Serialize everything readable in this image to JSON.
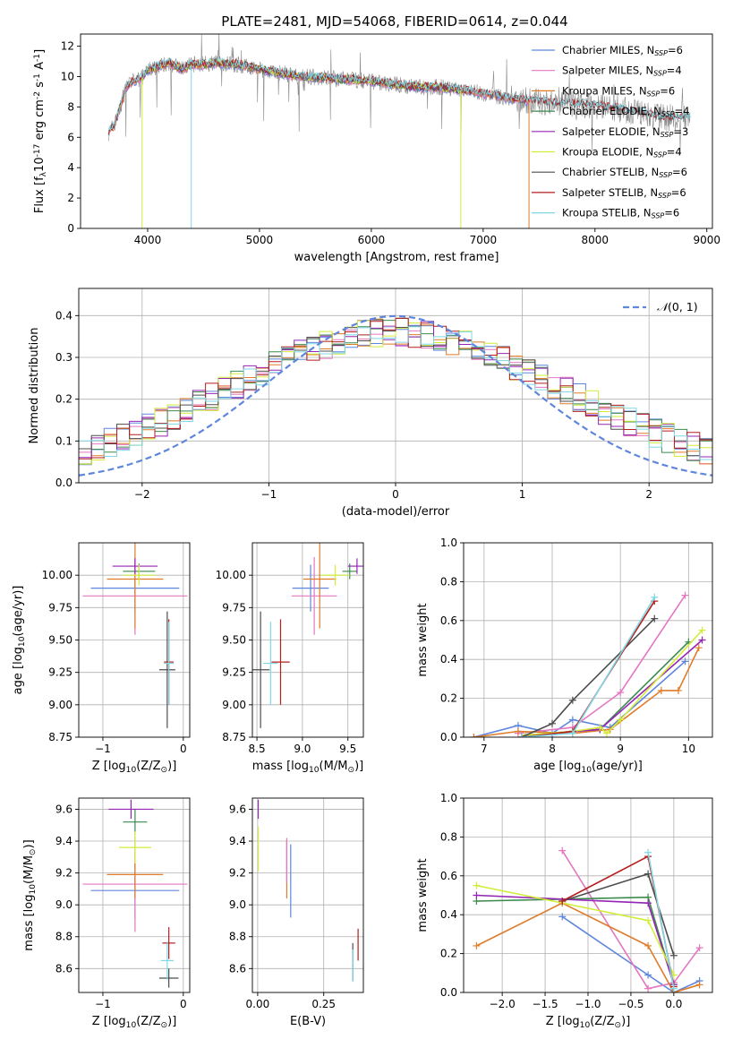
{
  "figure_title": "PLATE=2481, MJD=54068, FIBERID=0614, z=0.044",
  "colors": {
    "Chabrier MILES": "#5f86dd",
    "Salpeter MILES": "#e377c2",
    "Kroupa MILES": "#e07b28",
    "Chabrier ELODIE": "#3c8a4e",
    "Salpeter ELODIE": "#9525b5",
    "Kroupa ELODIE": "#d2ec3a",
    "Chabrier STELIB": "#4d4d4d",
    "Salpeter STELIB": "#b51e1e",
    "Kroupa STELIB": "#7fd8e6",
    "data": "#8c8c8c",
    "normal": "#5f86dd"
  },
  "chart_data": [
    {
      "id": "spectrum",
      "type": "line",
      "title": "PLATE=2481, MJD=54068, FIBERID=0614, z=0.044",
      "xlabel": "wavelength [Angstrom, rest frame]",
      "ylabel": "Flux [f$_\\lambda$10$^{-17}$ erg cm$^{-2}$ s$^{-1}$ A$^{-1}$]",
      "xlim": [
        3400,
        9050
      ],
      "ylim": [
        0,
        12.8
      ],
      "xticks": [
        4000,
        5000,
        6000,
        7000,
        8000,
        9000
      ],
      "yticks": [
        0,
        2,
        4,
        6,
        8,
        10,
        12
      ],
      "grid": false,
      "legend_position": "upper-right",
      "legend": [
        {
          "base": "Chabrier MILES, N",
          "sub": "SSP",
          "tail": "=6"
        },
        {
          "base": "Salpeter MILES, N",
          "sub": "SSP",
          "tail": "=4"
        },
        {
          "base": "Kroupa MILES, N",
          "sub": "SSP",
          "tail": "=6"
        },
        {
          "base": "Chabrier ELODIE, N",
          "sub": "SSP",
          "tail": "=4"
        },
        {
          "base": "Salpeter ELODIE, N",
          "sub": "SSP",
          "tail": "=3"
        },
        {
          "base": "Kroupa ELODIE, N",
          "sub": "SSP",
          "tail": "=4"
        },
        {
          "base": "Chabrier STELIB, N",
          "sub": "SSP",
          "tail": "=6"
        },
        {
          "base": "Salpeter STELIB, N",
          "sub": "SSP",
          "tail": "=6"
        },
        {
          "base": "Kroupa STELIB, N",
          "sub": "SSP",
          "tail": "=6"
        }
      ],
      "continuum": {
        "x": [
          3650,
          3700,
          3750,
          3800,
          3850,
          3900,
          3950,
          4000,
          4100,
          4200,
          4300,
          4400,
          4500,
          4600,
          4800,
          5000,
          5200,
          5400,
          5600,
          5800,
          6000,
          6200,
          6400,
          6600,
          6800,
          7000,
          7200,
          7400,
          7600,
          7800,
          8000,
          8200,
          8400,
          8600,
          8800
        ],
        "y": [
          6.3,
          6.8,
          7.8,
          9.2,
          9.6,
          9.8,
          9.9,
          10.4,
          10.7,
          10.9,
          10.5,
          10.8,
          10.8,
          10.9,
          10.8,
          10.5,
          10.2,
          10.0,
          9.9,
          9.8,
          9.7,
          9.5,
          9.3,
          9.3,
          9.1,
          8.9,
          8.6,
          8.4,
          8.3,
          8.2,
          8.1,
          7.9,
          7.6,
          7.3,
          7.3
        ]
      },
      "model_dropouts": [
        {
          "series": "Kroupa ELODIE",
          "x": 3950
        },
        {
          "series": "Kroupa STELIB",
          "x": 4390
        },
        {
          "series": "Kroupa ELODIE",
          "x": 6800
        },
        {
          "series": "Kroupa MILES",
          "x": 7410
        }
      ]
    },
    {
      "id": "residuals",
      "type": "step",
      "xlabel": "(data-model)/error",
      "ylabel": "Normed distribution",
      "xlim": [
        -2.5,
        2.5
      ],
      "ylim": [
        0,
        0.465
      ],
      "xticks": [
        -2,
        -1,
        0,
        1,
        2
      ],
      "yticks": [
        0.0,
        0.1,
        0.2,
        0.3,
        0.4
      ],
      "grid": true,
      "legend_position": "upper-right",
      "legend_label": "$\\mathcal{N}(0,1)$",
      "bin_width": 0.1,
      "normal_curve": {
        "mean": 0,
        "sigma": 1
      }
    },
    {
      "id": "age-vs-Z",
      "type": "errorbar",
      "xlabel": "Z [log$_{10}$(Z/Z$_\\odot$)]",
      "ylabel": "age  [log$_{10}$(age/yr)]",
      "xlim": [
        -1.3,
        0.08
      ],
      "ylim": [
        8.75,
        10.25
      ],
      "xticks": [
        -1,
        0
      ],
      "yticks": [
        8.75,
        9.0,
        9.25,
        9.5,
        9.75,
        10.0
      ],
      "grid": true,
      "points": [
        {
          "series": "Chabrier MILES",
          "x": -0.6,
          "xerr": 0.55,
          "y": 9.9,
          "yerr": 0.18
        },
        {
          "series": "Salpeter MILES",
          "x": -0.6,
          "xerr": 0.65,
          "y": 9.84,
          "yerr": 0.3
        },
        {
          "series": "Kroupa MILES",
          "x": -0.6,
          "xerr": 0.35,
          "y": 9.97,
          "yerr": 0.38
        },
        {
          "series": "Chabrier ELODIE",
          "x": -0.55,
          "xerr": 0.2,
          "y": 10.03,
          "yerr": 0.06
        },
        {
          "series": "Salpeter ELODIE",
          "x": -0.6,
          "xerr": 0.28,
          "y": 10.07,
          "yerr": 0.06
        },
        {
          "series": "Kroupa ELODIE",
          "x": -0.55,
          "xerr": 0.2,
          "y": 10.0,
          "yerr": 0.08
        },
        {
          "series": "Chabrier STELIB",
          "x": -0.2,
          "xerr": 0.1,
          "y": 9.27,
          "yerr": 0.45
        },
        {
          "series": "Salpeter STELIB",
          "x": -0.18,
          "xerr": 0.06,
          "y": 9.33,
          "yerr": 0.33
        },
        {
          "series": "Kroupa STELIB",
          "x": -0.18,
          "xerr": 0.06,
          "y": 9.32,
          "yerr": 0.32
        }
      ]
    },
    {
      "id": "age-vs-mass",
      "type": "errorbar",
      "xlabel": "mass [log$_{10}$(M/M$_\\odot$)]",
      "xlim": [
        8.45,
        9.67
      ],
      "ylim": [
        8.75,
        10.25
      ],
      "xticks": [
        8.5,
        9.0,
        9.5
      ],
      "yticks": [
        8.75,
        9.0,
        9.25,
        9.5,
        9.75,
        10.0
      ],
      "grid": true,
      "points": [
        {
          "series": "Chabrier MILES",
          "x": 9.09,
          "xerr": 0.2,
          "y": 9.9,
          "yerr": 0.18
        },
        {
          "series": "Salpeter MILES",
          "x": 9.13,
          "xerr": 0.25,
          "y": 9.84,
          "yerr": 0.3
        },
        {
          "series": "Kroupa MILES",
          "x": 9.19,
          "xerr": 0.18,
          "y": 9.97,
          "yerr": 0.38
        },
        {
          "series": "Chabrier ELODIE",
          "x": 9.52,
          "xerr": 0.08,
          "y": 10.03,
          "yerr": 0.06
        },
        {
          "series": "Salpeter ELODIE",
          "x": 9.6,
          "xerr": 0.1,
          "y": 10.07,
          "yerr": 0.06
        },
        {
          "series": "Kroupa ELODIE",
          "x": 9.36,
          "xerr": 0.16,
          "y": 10.0,
          "yerr": 0.08
        },
        {
          "series": "Chabrier STELIB",
          "x": 8.54,
          "xerr": 0.1,
          "y": 9.27,
          "yerr": 0.45
        },
        {
          "series": "Salpeter STELIB",
          "x": 8.76,
          "xerr": 0.1,
          "y": 9.33,
          "yerr": 0.33
        },
        {
          "series": "Kroupa STELIB",
          "x": 8.65,
          "xerr": 0.08,
          "y": 9.32,
          "yerr": 0.32
        }
      ]
    },
    {
      "id": "weight-vs-age",
      "type": "line",
      "xlabel": "age  [log$_{10}$(age/yr)]",
      "ylabel": "mass weight",
      "xlim": [
        6.7,
        10.35
      ],
      "ylim": [
        0,
        1.0
      ],
      "xticks": [
        7,
        8,
        9,
        10
      ],
      "yticks": [
        0.0,
        0.2,
        0.4,
        0.6,
        0.8,
        1.0
      ],
      "grid": true,
      "series": [
        {
          "name": "Chabrier MILES",
          "x": [
            6.85,
            7.5,
            8.0,
            8.3,
            8.85,
            9.95
          ],
          "y": [
            0.0,
            0.06,
            0.02,
            0.09,
            0.05,
            0.39
          ]
        },
        {
          "name": "Salpeter MILES",
          "x": [
            7.5,
            8.3,
            9.0,
            9.95
          ],
          "y": [
            0.02,
            0.05,
            0.23,
            0.73
          ]
        },
        {
          "name": "Kroupa MILES",
          "x": [
            6.85,
            7.5,
            8.3,
            8.85,
            9.6,
            9.85,
            10.15
          ],
          "y": [
            0.0,
            0.03,
            0.02,
            0.04,
            0.24,
            0.24,
            0.46
          ]
        },
        {
          "name": "Chabrier ELODIE",
          "x": [
            7.6,
            8.3,
            8.7,
            10.0
          ],
          "y": [
            0.01,
            0.03,
            0.04,
            0.49
          ]
        },
        {
          "name": "Salpeter ELODIE",
          "x": [
            7.6,
            8.7,
            10.2
          ],
          "y": [
            0.01,
            0.04,
            0.5
          ]
        },
        {
          "name": "Kroupa ELODIE",
          "x": [
            7.6,
            8.3,
            8.7,
            8.8,
            9.0,
            10.2
          ],
          "y": [
            0.01,
            0.03,
            0.05,
            0.02,
            0.09,
            0.55
          ]
        },
        {
          "name": "Chabrier STELIB",
          "x": [
            7.55,
            8.0,
            8.3,
            9.5
          ],
          "y": [
            0.0,
            0.07,
            0.19,
            0.61
          ]
        },
        {
          "name": "Salpeter STELIB",
          "x": [
            7.55,
            8.3,
            9.5
          ],
          "y": [
            0.0,
            0.03,
            0.7
          ]
        },
        {
          "name": "Kroupa STELIB",
          "x": [
            7.55,
            8.3,
            9.5
          ],
          "y": [
            0.0,
            0.02,
            0.72
          ]
        }
      ]
    },
    {
      "id": "mass-vs-Z",
      "type": "errorbar",
      "xlabel": "Z [log$_{10}$(Z/Z$_\\odot$)]",
      "ylabel": "mass [log$_{10}$(M/M$_\\odot$)]",
      "xlim": [
        -1.3,
        0.08
      ],
      "ylim": [
        8.45,
        9.67
      ],
      "xticks": [
        -1,
        0
      ],
      "yticks": [
        8.6,
        8.8,
        9.0,
        9.2,
        9.4,
        9.6
      ],
      "grid": true,
      "points": [
        {
          "series": "Chabrier MILES",
          "x": -0.6,
          "xerr": 0.55,
          "y": 9.09,
          "yerr": 0.18
        },
        {
          "series": "Salpeter MILES",
          "x": -0.6,
          "xerr": 0.65,
          "y": 9.13,
          "yerr": 0.3
        },
        {
          "series": "Kroupa MILES",
          "x": -0.6,
          "xerr": 0.35,
          "y": 9.19,
          "yerr": 0.15
        },
        {
          "series": "Chabrier ELODIE",
          "x": -0.6,
          "xerr": 0.15,
          "y": 9.52,
          "yerr": 0.08
        },
        {
          "series": "Salpeter ELODIE",
          "x": -0.65,
          "xerr": 0.28,
          "y": 9.6,
          "yerr": 0.06
        },
        {
          "series": "Kroupa ELODIE",
          "x": -0.6,
          "xerr": 0.2,
          "y": 9.36,
          "yerr": 0.1
        },
        {
          "series": "Chabrier STELIB",
          "x": -0.18,
          "xerr": 0.12,
          "y": 8.54,
          "yerr": 0.06
        },
        {
          "series": "Salpeter STELIB",
          "x": -0.18,
          "xerr": 0.08,
          "y": 8.76,
          "yerr": 0.1
        },
        {
          "series": "Kroupa STELIB",
          "x": -0.2,
          "xerr": 0.08,
          "y": 8.65,
          "yerr": 0.12
        }
      ]
    },
    {
      "id": "mass-vs-EBV",
      "type": "errorbar",
      "xlabel": "E(B-V)",
      "xlim": [
        -0.02,
        0.4
      ],
      "ylim": [
        8.45,
        9.67
      ],
      "xticks": [
        0.0,
        0.25
      ],
      "yticks": [
        8.6,
        8.8,
        9.0,
        9.2,
        9.4,
        9.6
      ],
      "grid": true,
      "points": [
        {
          "series": "Chabrier MILES",
          "x": 0.125,
          "y": 9.15,
          "yerr": 0.23
        },
        {
          "series": "Kroupa MILES",
          "x": 0.11,
          "y": 9.22,
          "yerr": 0.18
        },
        {
          "series": "Salpeter MILES",
          "x": 0.11,
          "y": 9.28,
          "yerr": 0.14
        },
        {
          "series": "Salpeter ELODIE",
          "x": 0.002,
          "y": 9.6,
          "yerr": 0.06
        },
        {
          "series": "Kroupa ELODIE",
          "x": 0.002,
          "y": 9.35,
          "yerr": 0.14
        },
        {
          "series": "Chabrier STELIB",
          "x": 0.36,
          "y": 8.64,
          "yerr": 0.12
        },
        {
          "series": "Salpeter STELIB",
          "x": 0.38,
          "y": 8.75,
          "yerr": 0.1
        },
        {
          "series": "Kroupa STELIB",
          "x": 0.36,
          "y": 8.62,
          "yerr": 0.1
        }
      ]
    },
    {
      "id": "weight-vs-Z",
      "type": "line",
      "xlabel": "Z [log$_{10}$(Z/Z$_\\odot$)]",
      "ylabel": "mass weight",
      "xlim": [
        -2.45,
        0.45
      ],
      "ylim": [
        0,
        1.0
      ],
      "xticks": [
        -2.0,
        -1.5,
        -1.0,
        -0.5,
        0.0
      ],
      "yticks": [
        0.0,
        0.2,
        0.4,
        0.6,
        0.8,
        1.0
      ],
      "grid": true,
      "series": [
        {
          "name": "Chabrier MILES",
          "x": [
            -1.3,
            -0.3,
            0.0,
            0.3
          ],
          "y": [
            0.39,
            0.09,
            0.0,
            0.06
          ]
        },
        {
          "name": "Salpeter MILES",
          "x": [
            -1.3,
            -0.3,
            0.0,
            0.3
          ],
          "y": [
            0.73,
            0.02,
            0.05,
            0.23
          ]
        },
        {
          "name": "Kroupa MILES",
          "x": [
            -2.3,
            -1.3,
            -0.3,
            0.0,
            0.3
          ],
          "y": [
            0.24,
            0.46,
            0.24,
            0.0,
            0.04
          ]
        },
        {
          "name": "Chabrier ELODIE",
          "x": [
            -2.3,
            -0.3,
            0.0
          ],
          "y": [
            0.47,
            0.49,
            0.04
          ]
        },
        {
          "name": "Salpeter ELODIE",
          "x": [
            -2.3,
            -0.3,
            0.0
          ],
          "y": [
            0.5,
            0.46,
            0.04
          ]
        },
        {
          "name": "Kroupa ELODIE",
          "x": [
            -2.3,
            -0.3,
            0.0
          ],
          "y": [
            0.55,
            0.37,
            0.09
          ]
        },
        {
          "name": "Chabrier STELIB",
          "x": [
            -1.3,
            -0.3,
            0.0
          ],
          "y": [
            0.47,
            0.61,
            0.19
          ]
        },
        {
          "name": "Salpeter STELIB",
          "x": [
            -1.3,
            -0.3,
            0.0
          ],
          "y": [
            0.47,
            0.7,
            0.03
          ]
        },
        {
          "name": "Kroupa STELIB",
          "x": [
            -0.3,
            0.0
          ],
          "y": [
            0.72,
            0.02
          ]
        }
      ]
    }
  ]
}
